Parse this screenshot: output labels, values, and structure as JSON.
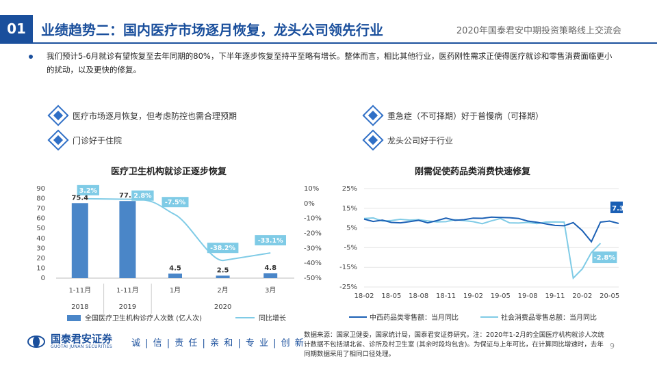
{
  "header": {
    "section_number": "01",
    "title": "业绩趋势二：国内医疗市场逐月恢复，龙头公司领先行业",
    "event": "2020年国泰君安中期投资策略线上交流会"
  },
  "summary": "我们预计5-6月就诊有望恢复至去年同期的80%，下半年逐步恢复至持平至略有增长。整体而言，相比其他行业，医药刚性需求正使得医疗就诊和零售消费面临更小的扰动，以及更快的修复。",
  "key_points": [
    "医疗市场逐月恢复，但考虑防控也需合理预期",
    "门诊好于住院",
    "重急症（不可择期）好于普慢病（可择期）",
    "龙头公司好于行业"
  ],
  "chart_data": [
    {
      "type": "bar",
      "title": "医疗卫生机构就诊正逐步恢复",
      "categories": [
        "1-11月",
        "1-11月",
        "1月",
        "2月",
        "3月"
      ],
      "group_labels": [
        "2018",
        "2019",
        "2020"
      ],
      "series": [
        {
          "name": "全国医疗卫生机构诊疗人次数 (亿人次)",
          "values": [
            75.4,
            77.5,
            4.5,
            2.5,
            4.8
          ],
          "axis": "left"
        },
        {
          "name": "同比增长",
          "values": [
            3.2,
            2.8,
            -7.5,
            -38.2,
            -33.1
          ],
          "axis": "right",
          "unit": "%"
        }
      ],
      "bar_labels": [
        "75.4",
        "77.5",
        "4.5",
        "2.5",
        "4.8"
      ],
      "line_labels": [
        "3.2%",
        "2.8%",
        "-7.5%",
        "-38.2%",
        "-33.1%"
      ],
      "ylim_left": [
        0,
        90
      ],
      "yticks_left": [
        "90",
        "80",
        "70",
        "60",
        "50",
        "40",
        "30",
        "20",
        "10",
        "0"
      ],
      "ylim_right": [
        -50,
        10
      ],
      "yticks_right": [
        "10%",
        "0%",
        "-10%",
        "-20%",
        "-30%",
        "-40%",
        "-50%"
      ],
      "colors": {
        "bar": "#4a86c8",
        "line": "#7fcbe6"
      }
    },
    {
      "type": "line",
      "title": "刚需促使药品类消费快速修复",
      "x_ticks": [
        "18-02",
        "18-05",
        "18-08",
        "18-11",
        "19-02",
        "19-05",
        "19-08",
        "19-11",
        "20-02",
        "20-05"
      ],
      "series": [
        {
          "name": "中西药品类零售额：当月同比",
          "values": [
            9.5,
            8.3,
            9.0,
            7.8,
            7.6,
            8.2,
            8.9,
            7.6,
            8.7,
            10.0,
            8.9,
            9.2,
            10.0,
            9.9,
            10.5,
            10.3,
            10.2,
            9.8,
            8.5,
            7.9,
            7.1,
            6.3,
            6.1,
            7.7,
            3.6,
            -2.0,
            8.0,
            8.5,
            7.3
          ],
          "end_label": "7.3%",
          "color": "#1a5fb4"
        },
        {
          "name": "社会消费品零售总额：当月同比",
          "values": [
            9.8,
            10.1,
            8.5,
            8.8,
            9.4,
            9.0,
            9.2,
            8.6,
            8.1,
            8.2,
            9.2,
            8.7,
            8.2,
            7.2,
            8.6,
            9.8,
            7.6,
            7.5,
            7.8,
            7.2,
            8.0,
            8.1,
            8.0,
            -20.5,
            -15.8,
            -7.5,
            -2.8
          ],
          "end_label": "-2.8%",
          "color": "#7fcbe6"
        }
      ],
      "ylim": [
        -25,
        25
      ],
      "yticks": [
        "25%",
        "15%",
        "5%",
        "-5%",
        "-15%",
        "-25%"
      ]
    }
  ],
  "footer": {
    "logo_name": "国泰君安证券",
    "logo_en": "GUOTAI JUNAN SECURITIES",
    "values": "诚 | 信 | 责 任 | 亲 和 | 专 业 | 创 新",
    "source": "数据来源：国家卫健委，国家统计局，国泰君安证券研究。注：2020年1-2月的全国医疗机构就诊人次统计数据不包括湖北省、诊所及村卫生室 (其余时段均包含)。为保证与上年可比，在计算同比增速时，去年同期数据采用了相同口径处理。",
    "page": "9"
  }
}
